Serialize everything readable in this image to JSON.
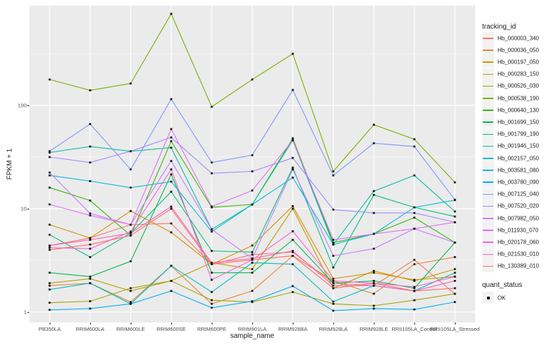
{
  "figure": {
    "x_axis_title": "sample_name",
    "y_axis_title": "FPKM + 1",
    "panel_bg": "#EBEBEB",
    "grid_color": "#FFFFFF",
    "point_color": "#111111"
  },
  "legend": {
    "color_title": "tracking_id",
    "shape_title": "quant_status",
    "shape_item_label": "OK"
  },
  "chart_data": {
    "type": "line",
    "title": "",
    "xlabel": "sample_name",
    "ylabel": "FPKM + 1",
    "y_scale": "log10",
    "y_ticks": [
      1,
      10,
      100
    ],
    "ylim": [
      0.95,
      900
    ],
    "grid": true,
    "legend_position": "right",
    "point_marker": "small black square (quant_status = OK) at every data point",
    "categories": [
      "PB350LA",
      "RRIM600LA",
      "RRIM600LE",
      "RRIM600SE",
      "RRIM600PE",
      "RRIM901LA",
      "RRIM928BA",
      "RRIM928LA",
      "RRIM928LE",
      "RRII105LA_Control",
      "RRII105LA_Stressed"
    ],
    "series": [
      {
        "name": "Hb_000003_340",
        "color": "#F8766D",
        "values": [
          4.4,
          5.2,
          7.0,
          7.2,
          2.9,
          3.6,
          3.8,
          1.9,
          1.8,
          3.2,
          1.5
        ]
      },
      {
        "name": "Hb_000036_050",
        "color": "#EA8331",
        "values": [
          1.8,
          1.9,
          1.25,
          2.8,
          1.2,
          1.6,
          3.5,
          2.0,
          1.5,
          2.9,
          3.4
        ]
      },
      {
        "name": "Hb_000197_050",
        "color": "#D89000",
        "values": [
          7.0,
          5.2,
          9.5,
          5.9,
          2.9,
          4.4,
          10.6,
          2.1,
          2.4,
          2.05,
          2.2
        ]
      },
      {
        "name": "Hb_000283_150",
        "color": "#C09B00",
        "values": [
          1.9,
          2.1,
          1.6,
          2.0,
          3.0,
          2.6,
          10.0,
          1.7,
          2.5,
          2.0,
          2.6
        ]
      },
      {
        "name": "Hb_000526_030",
        "color": "#A3A500",
        "values": [
          1.23,
          1.27,
          1.7,
          2.0,
          1.3,
          1.25,
          1.56,
          1.2,
          1.15,
          1.3,
          1.5
        ]
      },
      {
        "name": "Hb_000538_190",
        "color": "#7CAE00",
        "values": [
          178,
          140,
          163,
          770,
          97,
          178,
          316,
          23,
          65,
          47,
          18
        ]
      },
      {
        "name": "Hb_000640_130",
        "color": "#39B600",
        "values": [
          16,
          12,
          5.5,
          45,
          10.3,
          11,
          48,
          4.7,
          5.7,
          8.2,
          4.7
        ]
      },
      {
        "name": "Hb_001699_150",
        "color": "#00BB4E",
        "values": [
          2.4,
          2.2,
          3.1,
          21.5,
          2.4,
          2.4,
          5.0,
          1.9,
          2.0,
          1.7,
          4.7
        ]
      },
      {
        "name": "Hb_001799_190",
        "color": "#00BF7D",
        "values": [
          5.6,
          3.4,
          5.8,
          14.6,
          3.9,
          3.8,
          25,
          2.7,
          13.6,
          10.3,
          8.4
        ]
      },
      {
        "name": "Hb_001946_150",
        "color": "#00C1A3",
        "values": [
          35,
          40,
          36,
          39,
          6.3,
          11,
          46,
          4.5,
          14.8,
          21,
          9.4
        ]
      },
      {
        "name": "Hb_002157_050",
        "color": "#00BFC4",
        "values": [
          1.65,
          1.9,
          1.2,
          2.8,
          1.56,
          3.0,
          2.9,
          1.26,
          1.8,
          1.6,
          2.4
        ]
      },
      {
        "name": "Hb_003581_080",
        "color": "#00BADE",
        "values": [
          21,
          18.5,
          16,
          18.3,
          6.0,
          11,
          20,
          4.5,
          5.7,
          10.3,
          12.1
        ]
      },
      {
        "name": "Hb_003780_090",
        "color": "#00B0F6",
        "values": [
          1.05,
          1.08,
          1.2,
          1.6,
          1.1,
          1.27,
          1.78,
          1.03,
          1.08,
          1.06,
          1.25
        ]
      },
      {
        "name": "Hb_007125_040",
        "color": "#7C96FF",
        "values": [
          36,
          66,
          24,
          115,
          28,
          33,
          141,
          21,
          43,
          40,
          12.2
        ]
      },
      {
        "name": "Hb_007520_020",
        "color": "#A58AFF",
        "values": [
          31.6,
          28,
          36,
          49,
          22,
          23,
          31,
          9.8,
          9.1,
          9.1,
          7.4
        ]
      },
      {
        "name": "Hb_007982_050",
        "color": "#C77CFF",
        "values": [
          22.4,
          9.0,
          7.0,
          29,
          6.3,
          3.3,
          24,
          3.5,
          4.1,
          6.4,
          4.7
        ]
      },
      {
        "name": "Hb_011930_070",
        "color": "#E36EF6",
        "values": [
          11,
          8.6,
          7.0,
          59,
          10.5,
          15,
          46,
          5.0,
          5.7,
          6.4,
          7.4
        ]
      },
      {
        "name": "Hb_020178_060",
        "color": "#F762DC",
        "values": [
          4.2,
          4.1,
          6.0,
          24,
          2.05,
          3.2,
          6.05,
          2.0,
          1.9,
          1.75,
          2.2
        ]
      },
      {
        "name": "Hb_021530_010",
        "color": "#FF62BB",
        "values": [
          4.4,
          5.0,
          5.8,
          10.5,
          3.0,
          3.3,
          3.9,
          1.8,
          1.8,
          1.6,
          2.0
        ]
      },
      {
        "name": "Hb_130389_010",
        "color": "#FF6C67",
        "values": [
          4.0,
          4.5,
          5.5,
          10.0,
          2.9,
          3.2,
          3.5,
          1.7,
          1.9,
          1.6,
          1.7
        ]
      }
    ]
  }
}
